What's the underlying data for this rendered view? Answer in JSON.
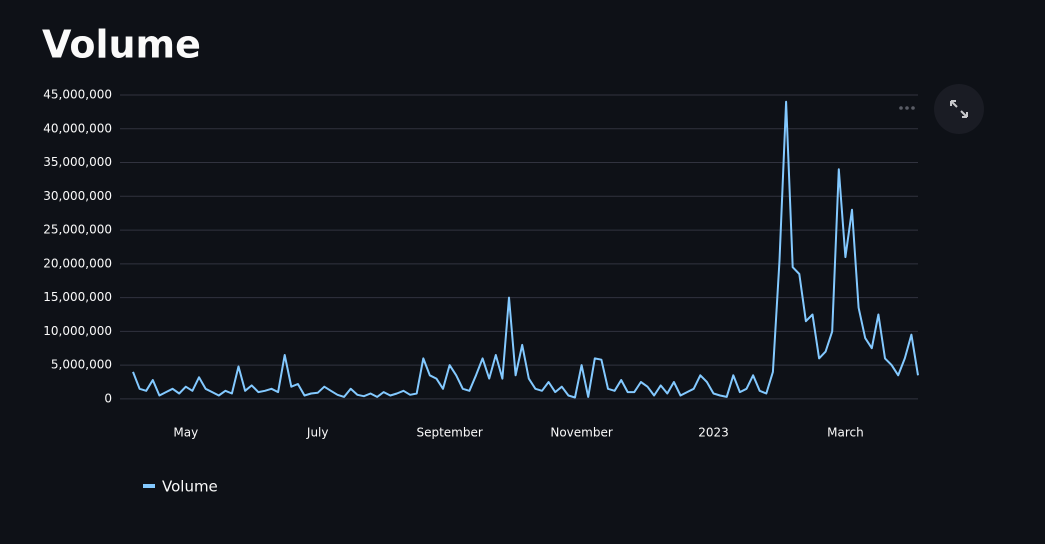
{
  "chart_data": {
    "type": "line",
    "title": "Volume",
    "categories": [
      null,
      null,
      null,
      null,
      null,
      null,
      null,
      null,
      "May",
      null,
      null,
      null,
      null,
      null,
      null,
      null,
      null,
      null,
      null,
      null,
      null,
      null,
      null,
      null,
      null,
      null,
      null,
      null,
      "July",
      null,
      null,
      null,
      null,
      null,
      null,
      null,
      null,
      null,
      null,
      null,
      null,
      null,
      null,
      null,
      null,
      null,
      null,
      null,
      "September",
      null,
      null,
      null,
      null,
      null,
      null,
      null,
      null,
      null,
      null,
      null,
      null,
      null,
      null,
      null,
      null,
      null,
      null,
      null,
      "November",
      null,
      null,
      null,
      null,
      null,
      null,
      null,
      null,
      null,
      null,
      null,
      null,
      null,
      null,
      null,
      null,
      null,
      null,
      null,
      "2023",
      null,
      null,
      null,
      null,
      null,
      null,
      null,
      null,
      null,
      null,
      null,
      null,
      null,
      null,
      null,
      null,
      null,
      null,
      null,
      "March",
      null,
      null,
      null,
      null,
      null,
      null,
      null,
      null,
      null,
      null,
      null
    ],
    "series": [
      {
        "name": "Volume",
        "color": "#83c9ff",
        "values": [
          4000000,
          1500000,
          1200000,
          2800000,
          500000,
          1000000,
          1500000,
          800000,
          1800000,
          1200000,
          3200000,
          1500000,
          1000000,
          500000,
          1200000,
          800000,
          4800000,
          1200000,
          2000000,
          1000000,
          1200000,
          1500000,
          1000000,
          6500000,
          1800000,
          2200000,
          500000,
          800000,
          900000,
          1800000,
          1200000,
          600000,
          300000,
          1500000,
          600000,
          400000,
          800000,
          300000,
          1000000,
          500000,
          800000,
          1200000,
          600000,
          800000,
          6000000,
          3500000,
          3000000,
          1500000,
          5000000,
          3500000,
          1500000,
          1200000,
          3500000,
          6000000,
          3000000,
          6500000,
          3000000,
          15000000,
          3500000,
          8000000,
          3000000,
          1500000,
          1200000,
          2500000,
          1000000,
          1800000,
          500000,
          200000,
          5000000,
          300000,
          6000000,
          5800000,
          1500000,
          1200000,
          2800000,
          1000000,
          1000000,
          2500000,
          1800000,
          500000,
          2000000,
          800000,
          2500000,
          500000,
          1000000,
          1500000,
          3500000,
          2500000,
          800000,
          500000,
          300000,
          3500000,
          1000000,
          1500000,
          3500000,
          1200000,
          800000,
          4000000,
          20500000,
          44000000,
          19500000,
          18500000,
          11500000,
          12500000,
          6000000,
          7000000,
          10000000,
          34000000,
          21000000,
          28000000,
          13500000,
          9000000,
          7500000,
          12500000,
          6000000,
          5000000,
          3500000,
          6000000,
          9500000,
          3500000
        ]
      }
    ],
    "ylim": [
      -1200000,
      45000000
    ],
    "yticks": [
      0,
      {
        "value": 5000000,
        "label": "5,000,000"
      },
      {
        "value": 10000000,
        "label": "10,000,000"
      },
      {
        "value": 15000000,
        "label": "15,000,000"
      },
      {
        "value": 20000000,
        "label": "20,000,000"
      },
      {
        "value": 25000000,
        "label": "25,000,000"
      },
      {
        "value": 30000000,
        "label": "30,000,000"
      },
      {
        "value": 35000000,
        "label": "35,000,000"
      },
      {
        "value": 40000000,
        "label": "40,000,000"
      },
      {
        "value": 45000000,
        "label": "45,000,000"
      }
    ],
    "grid": true
  }
}
